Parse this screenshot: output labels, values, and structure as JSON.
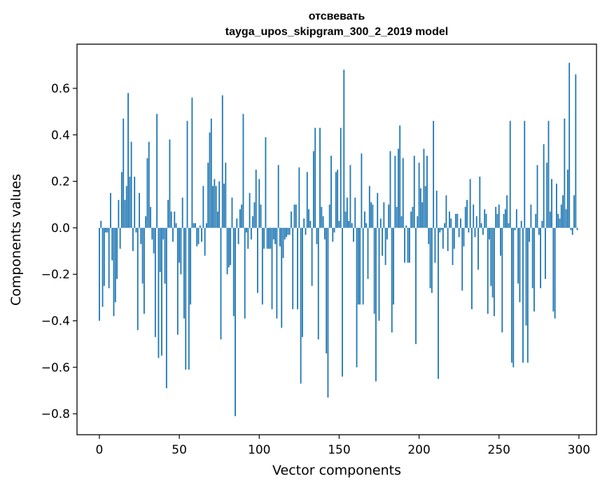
{
  "chart_data": {
    "type": "bar",
    "title": "отсвевать",
    "subtitle": "tayga_upos_skipgram_300_2_2019 model",
    "xlabel": "Vector components",
    "ylabel": "Components values",
    "xlim": [
      -14,
      311
    ],
    "ylim": [
      -0.89,
      0.79
    ],
    "xticks": [
      0,
      50,
      100,
      150,
      200,
      250,
      300
    ],
    "xtick_labels": [
      "0",
      "50",
      "100",
      "150",
      "200",
      "250",
      "300"
    ],
    "yticks": [
      -0.8,
      -0.6,
      -0.4,
      -0.2,
      0.0,
      0.2,
      0.4,
      0.6
    ],
    "ytick_labels": [
      "−0.8",
      "−0.6",
      "−0.4",
      "−0.2",
      "0.0",
      "0.2",
      "0.4",
      "0.6"
    ],
    "bar_color": "#1f77b4",
    "values": [
      -0.4,
      0.03,
      -0.34,
      -0.25,
      -0.02,
      -0.02,
      -0.26,
      0.15,
      -0.14,
      -0.38,
      -0.32,
      -0.22,
      0.12,
      -0.09,
      0.24,
      0.47,
      0.12,
      0.18,
      0.58,
      0.22,
      0.37,
      -0.1,
      0.22,
      -0.02,
      -0.44,
      0.15,
      -0.07,
      -0.24,
      -0.37,
      0.05,
      0.3,
      0.37,
      0.09,
      -0.05,
      -0.11,
      -0.47,
      0.49,
      -0.56,
      -0.19,
      -0.55,
      -0.05,
      -0.24,
      -0.69,
      0.12,
      0.38,
      0.07,
      -0.06,
      0.07,
      0.02,
      -0.46,
      -0.15,
      -0.2,
      0.13,
      -0.39,
      -0.61,
      0.46,
      -0.61,
      -0.33,
      0.56,
      0.02,
      0.02,
      -0.08,
      -0.07,
      0.01,
      -0.06,
      0.18,
      -0.12,
      0.02,
      0.28,
      0.41,
      0.47,
      0.18,
      0.21,
      0.18,
      0.07,
      0.2,
      -0.48,
      0.57,
      0.19,
      0.28,
      -0.2,
      -0.17,
      -0.16,
      0.13,
      -0.38,
      -0.81,
      0.04,
      -0.07,
      0.08,
      0.1,
      0.49,
      -0.39,
      -0.02,
      -0.09,
      0.15,
      -0.05,
      0.05,
      0.11,
      0.25,
      -0.28,
      0.21,
      0.1,
      -0.33,
      -0.09,
      0.39,
      -0.09,
      -0.09,
      -0.09,
      -0.35,
      -0.05,
      -0.07,
      -0.39,
      0.27,
      -0.08,
      -0.43,
      -0.13,
      -0.05,
      -0.04,
      -0.03,
      -0.03,
      0.07,
      -0.35,
      0.1,
      0.1,
      -0.35,
      0.26,
      -0.67,
      -0.47,
      0.04,
      -0.03,
      0.24,
      0.08,
      0.03,
      -0.25,
      0.33,
      0.43,
      -0.07,
      -0.48,
      0.43,
      0.09,
      0.05,
      -0.05,
      -0.54,
      -0.73,
      0.1,
      0.31,
      -0.06,
      -0.02,
      0.24,
      0.25,
      0.03,
      0.43,
      -0.64,
      0.68,
      0.07,
      0.13,
      0.03,
      0.27,
      0.02,
      -0.06,
      0.13,
      -0.6,
      -0.33,
      -0.33,
      0.32,
      -0.33,
      0.07,
      0.02,
      -0.22,
      0.18,
      0.11,
      0.1,
      -0.37,
      -0.66,
      0.15,
      -0.4,
      0.04,
      -0.12,
      0.11,
      -0.16,
      -0.05,
      0.1,
      0.33,
      -0.45,
      -0.33,
      0.31,
      0.09,
      0.34,
      0.44,
      0.05,
      0.3,
      -0.15,
      0.01,
      -0.15,
      -0.15,
      0.07,
      0.09,
      0.31,
      -0.5,
      0.05,
      0.28,
      0.17,
      0.11,
      0.34,
      0.18,
      0.31,
      -0.07,
      -0.26,
      -0.28,
      0.46,
      -0.15,
      0.16,
      -0.65,
      -0.02,
      -0.01,
      -0.09,
      0.02,
      0.14,
      -0.1,
      0.07,
      0.04,
      -0.16,
      -0.09,
      0.06,
      0.06,
      -0.04,
      0.04,
      -0.27,
      -0.08,
      0.09,
      0.12,
      -0.02,
      0.21,
      -0.35,
      0.1,
      -0.04,
      0.05,
      -0.18,
      0.22,
      0.02,
      -0.03,
      0.08,
      0.06,
      -0.37,
      -0.05,
      -0.25,
      -0.3,
      -0.38,
      0.09,
      0.06,
      0.1,
      -0.12,
      -0.45,
      0.06,
      0.08,
      0.14,
      0.02,
      0.46,
      -0.58,
      -0.6,
      -0.01,
      0.08,
      -0.24,
      -0.32,
      0.03,
      -0.58,
      0.46,
      -0.42,
      -0.58,
      -0.06,
      0.1,
      -0.26,
      -0.36,
      0.06,
      0.27,
      -0.03,
      -0.26,
      0.03,
      0.36,
      -0.22,
      0.28,
      0.46,
      0.07,
      0.21,
      -0.36,
      -0.39,
      0.19,
      0.06,
      0.04,
      0.1,
      0.14,
      0.47,
      0.08,
      0.25,
      0.71,
      -0.01,
      -0.03,
      0.14,
      0.66,
      -0.01
    ]
  }
}
